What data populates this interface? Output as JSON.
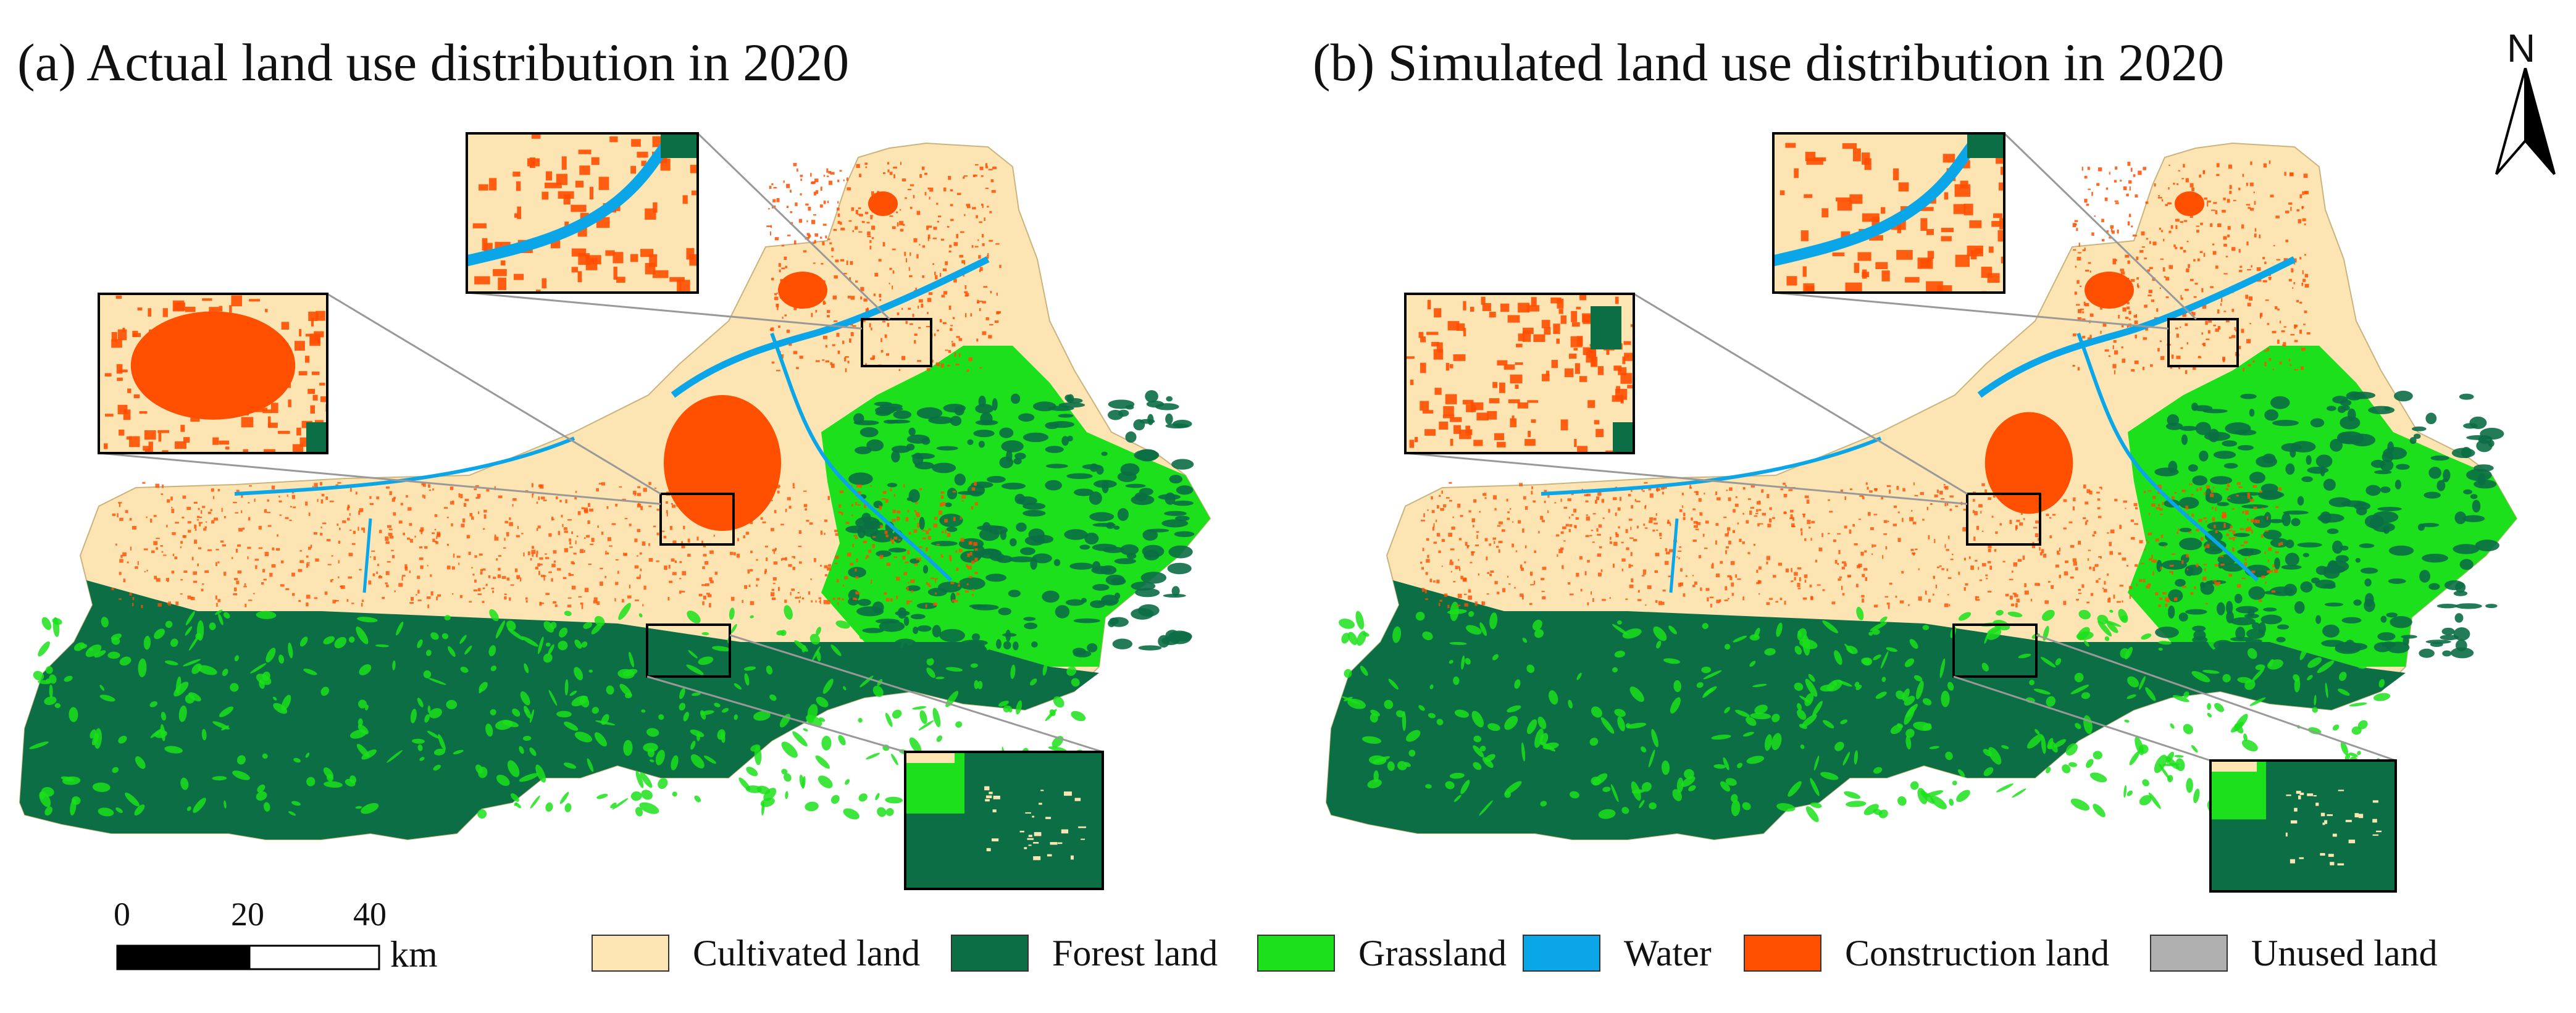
{
  "titles": {
    "left": "(a) Actual land use distribution in 2020",
    "right": "(b) Simulated land use distribution in 2020"
  },
  "north_arrow": {
    "label": "N"
  },
  "scale_bar": {
    "ticks": [
      "0",
      "20",
      "40"
    ],
    "unit": "km"
  },
  "legend": [
    {
      "label": "Cultivated land",
      "color": "#fde5b3"
    },
    {
      "label": "Forest land",
      "color": "#0b6e45"
    },
    {
      "label": "Grassland",
      "color": "#1be01b"
    },
    {
      "label": "Water",
      "color": "#0aa6e8"
    },
    {
      "label": "Construction land",
      "color": "#ff4f00"
    },
    {
      "label": "Unused land",
      "color": "#b0b0b0"
    }
  ],
  "colors": {
    "cultivated": "#fde5b3",
    "forest": "#0b6e45",
    "grassland": "#1be01b",
    "water": "#0aa6e8",
    "construction": "#ff4f00",
    "unused": "#b0b0b0"
  }
}
